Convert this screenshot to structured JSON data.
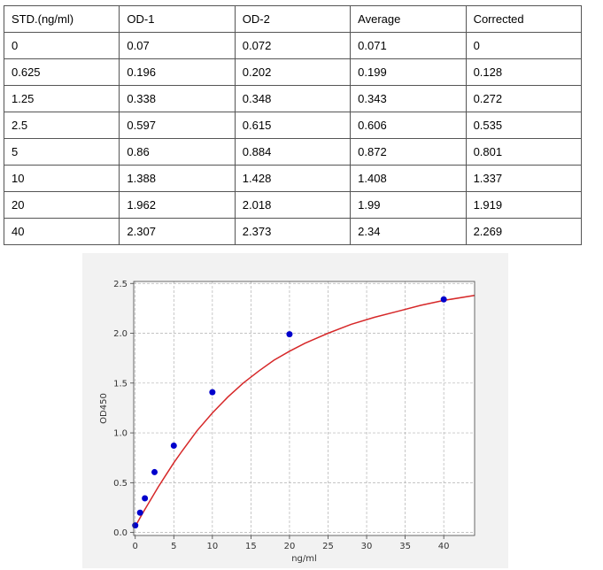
{
  "table": {
    "headers": [
      "STD.(ng/ml)",
      "OD-1",
      "OD-2",
      "Average",
      "Corrected"
    ],
    "rows": [
      [
        "0",
        "0.07",
        "0.072",
        "0.071",
        "0"
      ],
      [
        "0.625",
        "0.196",
        "0.202",
        "0.199",
        "0.128"
      ],
      [
        "1.25",
        "0.338",
        "0.348",
        "0.343",
        "0.272"
      ],
      [
        "2.5",
        "0.597",
        "0.615",
        "0.606",
        "0.535"
      ],
      [
        "5",
        "0.86",
        "0.884",
        "0.872",
        "0.801"
      ],
      [
        "10",
        "1.388",
        "1.428",
        "1.408",
        "1.337"
      ],
      [
        "20",
        "1.962",
        "2.018",
        "1.99",
        "1.919"
      ],
      [
        "40",
        "2.307",
        "2.373",
        "2.34",
        "2.269"
      ]
    ]
  },
  "chart_data": {
    "type": "scatter",
    "xlabel": "ng/ml",
    "ylabel": "OD450",
    "xlim": [
      -0.2,
      44
    ],
    "ylim": [
      -0.03,
      2.52
    ],
    "xticks": [
      "0",
      "5",
      "10",
      "15",
      "20",
      "25",
      "30",
      "35",
      "40"
    ],
    "yticks": [
      "0.0",
      "0.5",
      "1.0",
      "1.5",
      "2.0",
      "2.5"
    ],
    "grid": true,
    "points": {
      "x": [
        0,
        0.625,
        1.25,
        2.5,
        5,
        10,
        20,
        40
      ],
      "y": [
        0.071,
        0.199,
        0.343,
        0.606,
        0.872,
        1.408,
        1.99,
        2.34
      ],
      "color": "#0000cc"
    },
    "fit_curve": {
      "x": [
        0,
        0.5,
        1,
        2,
        3,
        4,
        5,
        6,
        8,
        10,
        12,
        14,
        16,
        18,
        20,
        22,
        25,
        28,
        31,
        34,
        37,
        40,
        44
      ],
      "y": [
        0.06,
        0.13,
        0.2,
        0.33,
        0.46,
        0.58,
        0.7,
        0.81,
        1.02,
        1.2,
        1.36,
        1.5,
        1.62,
        1.73,
        1.82,
        1.9,
        2.0,
        2.09,
        2.16,
        2.22,
        2.28,
        2.33,
        2.38
      ],
      "color": "#d62728"
    }
  }
}
